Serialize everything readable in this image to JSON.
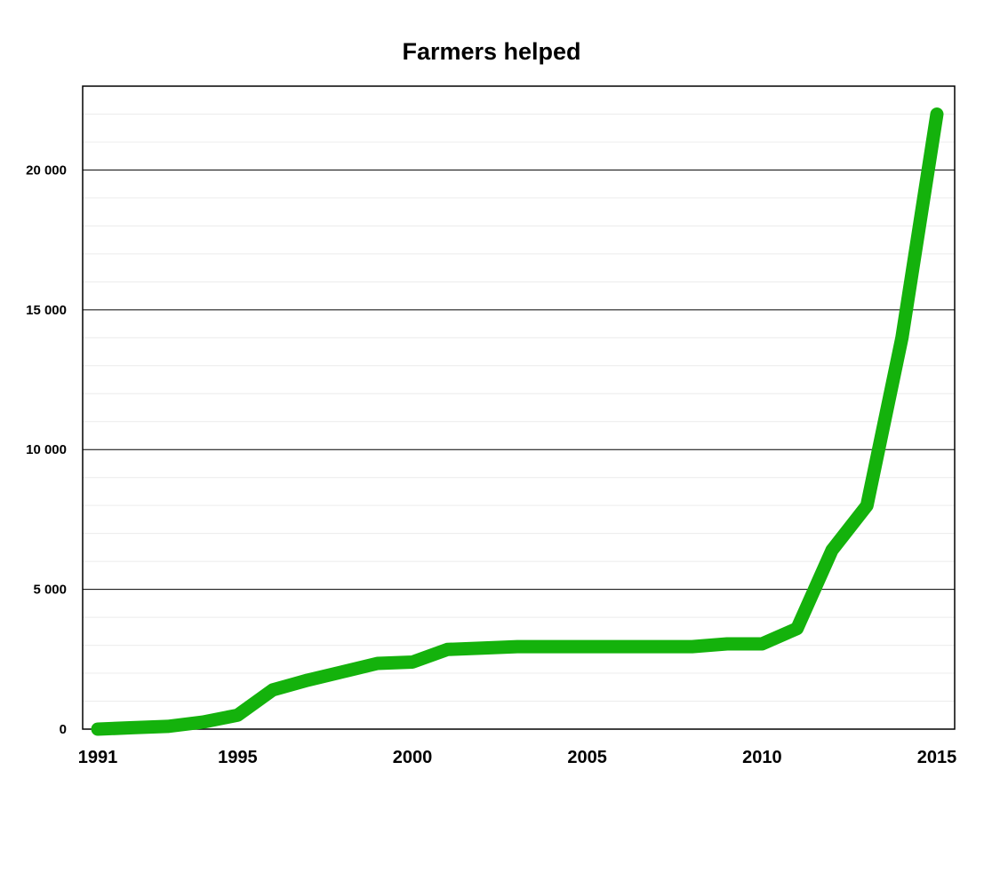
{
  "chart_data": {
    "type": "line",
    "title": "Farmers helped",
    "xlabel": "",
    "ylabel": "",
    "xlim": [
      1991,
      2015
    ],
    "ylim": [
      0,
      23000
    ],
    "grid": true,
    "legend": "none",
    "x_ticks": [
      {
        "value": 1991,
        "label": "1991"
      },
      {
        "value": 1995,
        "label": "1995"
      },
      {
        "value": 2000,
        "label": "2000"
      },
      {
        "value": 2005,
        "label": "2005"
      },
      {
        "value": 2010,
        "label": "2010"
      },
      {
        "value": 2015,
        "label": "2015"
      }
    ],
    "y_ticks": [
      {
        "value": 0,
        "label": "0"
      },
      {
        "value": 5000,
        "label": "5 000"
      },
      {
        "value": 10000,
        "label": "10 000"
      },
      {
        "value": 15000,
        "label": "15 000"
      },
      {
        "value": 20000,
        "label": "20 000"
      }
    ],
    "y_minor_step": 1000,
    "line_color": "#14b20c",
    "series": [
      {
        "x": [
          1991,
          1992,
          1993,
          1994,
          1995,
          1996,
          1997,
          1998,
          1999,
          2000,
          2001,
          2002,
          2003,
          2004,
          2005,
          2006,
          2007,
          2008,
          2009,
          2010,
          2011,
          2012,
          2013,
          2014,
          2015
        ],
        "values": [
          0,
          50,
          100,
          250,
          500,
          1400,
          1750,
          2050,
          2350,
          2400,
          2850,
          2900,
          2950,
          2950,
          2950,
          2950,
          2950,
          2950,
          3050,
          3050,
          3600,
          6400,
          8000,
          14000,
          22000
        ]
      }
    ]
  }
}
